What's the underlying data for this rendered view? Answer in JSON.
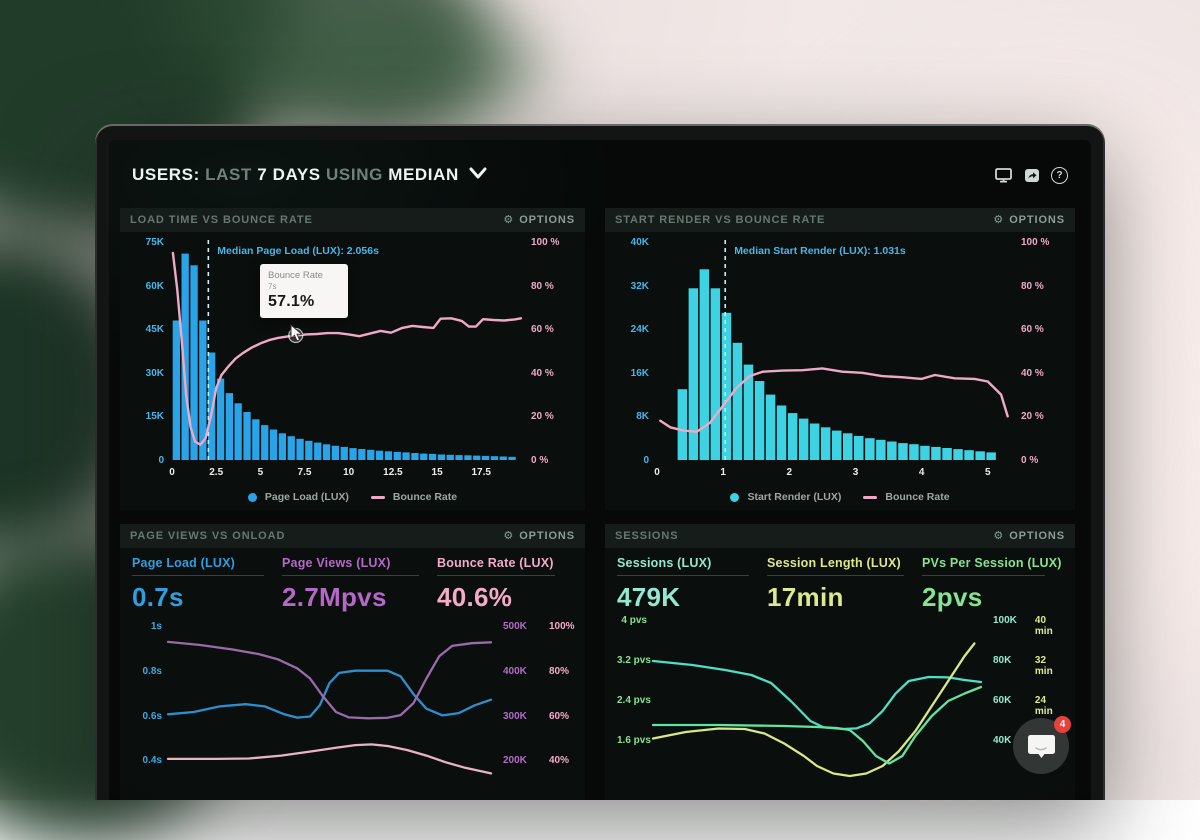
{
  "header": {
    "users": "USERS:",
    "last": " LAST ",
    "days": "7 DAYS",
    "using": " USING ",
    "metric": "MEDIAN",
    "icons": [
      "display-icon",
      "share-icon",
      "help-icon"
    ]
  },
  "glyphs": {
    "gear": "⚙",
    "help": "?"
  },
  "chat": {
    "badge": "4"
  },
  "chart_data": [
    {
      "id": "load-time-vs-bounce-rate",
      "type": "bar+line",
      "title": "LOAD TIME VS BOUNCE RATE",
      "options_label": "OPTIONS",
      "bars": {
        "name": "Page Load (LUX)",
        "color": "#2aa4e8",
        "x_start": 0,
        "bar_width": 0.5,
        "values_k": [
          48,
          71,
          67,
          48,
          37,
          28,
          23,
          19.5,
          16.5,
          14,
          12,
          10.5,
          9.2,
          8.2,
          7.3,
          6.6,
          6,
          5.4,
          4.9,
          4.5,
          4.1,
          3.8,
          3.5,
          3.2,
          3,
          2.8,
          2.6,
          2.4,
          2.2,
          2.1,
          1.9,
          1.8,
          1.7,
          1.6,
          1.5,
          1.4,
          1.3,
          1.2,
          1.1
        ]
      },
      "line": {
        "name": "Bounce Rate",
        "color": "#f0a9c5",
        "points": [
          [
            0.05,
            95
          ],
          [
            0.3,
            78
          ],
          [
            0.55,
            55
          ],
          [
            0.8,
            30
          ],
          [
            1.05,
            15
          ],
          [
            1.3,
            8.5
          ],
          [
            1.6,
            7
          ],
          [
            1.9,
            10
          ],
          [
            2.2,
            20
          ],
          [
            2.5,
            33
          ],
          [
            2.8,
            39
          ],
          [
            3.2,
            43
          ],
          [
            3.6,
            46.5
          ],
          [
            4,
            49
          ],
          [
            4.5,
            51.5
          ],
          [
            5,
            53.5
          ],
          [
            5.5,
            55
          ],
          [
            6,
            56
          ],
          [
            6.5,
            56.6
          ],
          [
            7,
            57.1
          ],
          [
            7.6,
            57.6
          ],
          [
            8.2,
            57.8
          ],
          [
            8.8,
            58.2
          ],
          [
            9.4,
            58.2
          ],
          [
            10,
            57.6
          ],
          [
            10.6,
            56.8
          ],
          [
            11.2,
            58
          ],
          [
            11.8,
            59.2
          ],
          [
            12.4,
            58.4
          ],
          [
            13,
            60.5
          ],
          [
            13.6,
            61.5
          ],
          [
            14.2,
            61
          ],
          [
            14.8,
            60.6
          ],
          [
            15.2,
            64.8
          ],
          [
            15.8,
            65
          ],
          [
            16.4,
            63.8
          ],
          [
            16.8,
            61.2
          ],
          [
            17.2,
            61.2
          ],
          [
            17.6,
            64.6
          ],
          [
            18.2,
            64.2
          ],
          [
            18.8,
            64
          ],
          [
            19.4,
            64.5
          ],
          [
            19.75,
            65
          ]
        ]
      },
      "y_left": {
        "ticks": [
          "75K",
          "60K",
          "45K",
          "30K",
          "15K",
          "0"
        ],
        "max": 75
      },
      "y_right": {
        "ticks": [
          "100 %",
          "80 %",
          "60 %",
          "40 %",
          "20 %",
          "0 %"
        ],
        "max": 100
      },
      "x": {
        "ticks": [
          "0",
          "2.5",
          "5",
          "7.5",
          "10",
          "12.5",
          "15",
          "17.5"
        ],
        "tick_values": [
          0,
          2.5,
          5,
          7.5,
          10,
          12.5,
          15,
          17.5
        ],
        "max": 19.75
      },
      "median": {
        "x": 2.056,
        "label": "Median Page Load (LUX): 2.056s"
      },
      "tooltip": {
        "title": "Bounce Rate",
        "sub": "7s",
        "value": "57.1%",
        "at_x": 7,
        "at_value": 57.1
      },
      "legend": [
        {
          "marker": "dot",
          "label": "Page Load (LUX)"
        },
        {
          "marker": "dash",
          "label": "Bounce Rate"
        }
      ]
    },
    {
      "id": "start-render-vs-bounce-rate",
      "type": "bar+line",
      "title": "START RENDER VS BOUNCE RATE",
      "options_label": "OPTIONS",
      "bars": {
        "name": "Start Render (LUX)",
        "color": "#3dd3e3",
        "x_start": 0.3,
        "bar_width": 0.1667,
        "values_k": [
          13,
          31.5,
          35,
          31.5,
          27,
          21.5,
          17.5,
          14.5,
          12,
          10,
          8.6,
          7.6,
          6.7,
          6,
          5.4,
          4.9,
          4.4,
          4,
          3.7,
          3.4,
          3.1,
          2.9,
          2.6,
          2.4,
          2.2,
          2,
          1.8,
          1.6,
          1.4
        ]
      },
      "line": {
        "name": "Bounce Rate",
        "color": "#f0a9c5",
        "points": [
          [
            0.05,
            18
          ],
          [
            0.2,
            15
          ],
          [
            0.4,
            13.5
          ],
          [
            0.6,
            13
          ],
          [
            0.8,
            17
          ],
          [
            1,
            25
          ],
          [
            1.2,
            33
          ],
          [
            1.4,
            38.5
          ],
          [
            1.6,
            40.5
          ],
          [
            1.9,
            41
          ],
          [
            2.2,
            41.2
          ],
          [
            2.5,
            42
          ],
          [
            2.8,
            40.5
          ],
          [
            3.1,
            40
          ],
          [
            3.4,
            38.5
          ],
          [
            3.7,
            38
          ],
          [
            4,
            37.2
          ],
          [
            4.2,
            39
          ],
          [
            4.5,
            37.5
          ],
          [
            4.8,
            37.2
          ],
          [
            5,
            36
          ],
          [
            5.2,
            30
          ],
          [
            5.3,
            20
          ]
        ]
      },
      "y_left": {
        "ticks": [
          "40K",
          "32K",
          "24K",
          "16K",
          "8K",
          "0"
        ],
        "max": 40
      },
      "y_right": {
        "ticks": [
          "100 %",
          "80 %",
          "60 %",
          "40 %",
          "20 %",
          "0 %"
        ],
        "max": 100
      },
      "x": {
        "ticks": [
          "0",
          "1",
          "2",
          "3",
          "4",
          "5"
        ],
        "tick_values": [
          0,
          1,
          2,
          3,
          4,
          5
        ],
        "max": 5.35
      },
      "median": {
        "x": 1.031,
        "label": "Median Start Render (LUX): 1.031s"
      },
      "legend": [
        {
          "marker": "dot",
          "label": "Start Render (LUX)"
        },
        {
          "marker": "dash",
          "label": "Bounce Rate"
        }
      ]
    },
    {
      "id": "page-views-vs-onload",
      "type": "multi-line",
      "title": "PAGE VIEWS VS ONLOAD",
      "options_label": "OPTIONS",
      "metrics": [
        {
          "label": "Page Load (LUX)",
          "value": "0.7s",
          "color": "#2f9fe0"
        },
        {
          "label": "Page Views (LUX)",
          "value": "2.7Mpvs",
          "color": "#b668c9"
        },
        {
          "label": "Bounce Rate (LUX)",
          "value": "40.6%",
          "color": "#f3abc7"
        }
      ],
      "scale": {
        "top": 1.05,
        "bottom": 0.02
      },
      "y_left": {
        "ticks": [
          "1s",
          "0.8s",
          "0.6s",
          "0.4s"
        ],
        "values": [
          1,
          0.8,
          0.6,
          0.4
        ],
        "color": "#3fa9e4"
      },
      "y_right": {
        "values": [
          1,
          0.8,
          0.6,
          0.4
        ],
        "rows": [
          [
            "500K",
            "100%"
          ],
          [
            "400K",
            "80%"
          ],
          [
            "300K",
            "60%"
          ],
          [
            "200K",
            "40%"
          ]
        ],
        "c1": "#b36cc6",
        "c2": "#f3abc7"
      },
      "series": [
        {
          "name": "Page Load",
          "unit": "s",
          "div": 1,
          "color": "#2e8fd0",
          "points": [
            [
              0,
              0.61
            ],
            [
              8,
              0.62
            ],
            [
              16,
              0.645
            ],
            [
              24,
              0.655
            ],
            [
              30,
              0.645
            ],
            [
              36,
              0.61
            ],
            [
              40,
              0.595
            ],
            [
              44,
              0.6
            ],
            [
              47,
              0.65
            ],
            [
              50,
              0.75
            ],
            [
              53,
              0.795
            ],
            [
              58,
              0.805
            ],
            [
              68,
              0.805
            ],
            [
              72,
              0.78
            ],
            [
              76,
              0.7
            ],
            [
              80,
              0.635
            ],
            [
              85,
              0.605
            ],
            [
              90,
              0.615
            ],
            [
              95,
              0.65
            ],
            [
              100,
              0.675
            ]
          ]
        },
        {
          "name": "Page Views",
          "unit": "K",
          "div": 500,
          "color": "#9b6aa8",
          "points": [
            [
              0,
              467
            ],
            [
              10,
              460
            ],
            [
              20,
              450
            ],
            [
              28,
              440
            ],
            [
              34,
              428
            ],
            [
              40,
              408
            ],
            [
              44,
              385
            ],
            [
              48,
              345
            ],
            [
              52,
              310
            ],
            [
              56,
              298
            ],
            [
              62,
              296
            ],
            [
              68,
              297
            ],
            [
              72,
              303
            ],
            [
              76,
              330
            ],
            [
              80,
              385
            ],
            [
              84,
              435
            ],
            [
              88,
              458
            ],
            [
              94,
              464
            ],
            [
              100,
              466
            ]
          ]
        },
        {
          "name": "Bounce Rate",
          "unit": "%",
          "div": 100,
          "color": "#e8b4c4",
          "points": [
            [
              0,
              41
            ],
            [
              15,
              41
            ],
            [
              25,
              41.2
            ],
            [
              35,
              42.5
            ],
            [
              45,
              44.5
            ],
            [
              52,
              46
            ],
            [
              58,
              47.2
            ],
            [
              63,
              47.5
            ],
            [
              68,
              46.8
            ],
            [
              74,
              45
            ],
            [
              80,
              42.5
            ],
            [
              86,
              39.5
            ],
            [
              92,
              37
            ],
            [
              100,
              34.5
            ]
          ]
        }
      ]
    },
    {
      "id": "sessions",
      "type": "multi-line",
      "title": "SESSIONS",
      "options_label": "OPTIONS",
      "metrics": [
        {
          "label": "Sessions (LUX)",
          "value": "479K",
          "color": "#93e8d2"
        },
        {
          "label": "Session Length (LUX)",
          "value": "17min",
          "color": "#dce98e"
        },
        {
          "label": "PVs Per Session (LUX)",
          "value": "2pvs",
          "color": "#86e490"
        }
      ],
      "scale": {
        "top": 4.1,
        "bottom": -0.5
      },
      "y_left": {
        "ticks": [
          "4 pvs",
          "3.2 pvs",
          "2.4 pvs",
          "1.6 pvs"
        ],
        "values": [
          4,
          3.2,
          2.4,
          1.6
        ],
        "color": "#86e490"
      },
      "y_right": {
        "values": [
          4,
          3.2,
          2.4,
          1.6
        ],
        "rows": [
          [
            "100K",
            "40 min"
          ],
          [
            "80K",
            "32 min"
          ],
          [
            "60K",
            "24 min"
          ],
          [
            "40K",
            ""
          ]
        ],
        "c1": "#93e8d2",
        "c2": "#dce98e"
      },
      "series": [
        {
          "name": "Sessions",
          "unit": "K",
          "div": 25,
          "color": "#4fdec6",
          "points": [
            [
              0,
              80
            ],
            [
              12,
              78
            ],
            [
              22,
              75.5
            ],
            [
              30,
              73
            ],
            [
              36,
              69
            ],
            [
              42,
              60
            ],
            [
              48,
              50
            ],
            [
              52,
              46.8
            ],
            [
              58,
              46
            ],
            [
              62,
              46.3
            ],
            [
              66,
              48.8
            ],
            [
              70,
              55
            ],
            [
              74,
              63.8
            ],
            [
              78,
              70
            ],
            [
              84,
              72
            ],
            [
              90,
              71.8
            ],
            [
              95,
              70.5
            ],
            [
              100,
              69.5
            ]
          ]
        },
        {
          "name": "Session Length",
          "unit": "min",
          "div": 10,
          "color": "#d9e882",
          "points": [
            [
              0,
              16.5
            ],
            [
              10,
              17.8
            ],
            [
              20,
              18.5
            ],
            [
              28,
              18.4
            ],
            [
              34,
              17.5
            ],
            [
              40,
              15.5
            ],
            [
              46,
              13
            ],
            [
              50,
              11
            ],
            [
              55,
              9.5
            ],
            [
              60,
              9
            ],
            [
              65,
              9.5
            ],
            [
              70,
              11
            ],
            [
              75,
              14
            ],
            [
              80,
              18
            ],
            [
              85,
              23
            ],
            [
              90,
              28
            ],
            [
              95,
              33
            ],
            [
              98,
              35.5
            ]
          ]
        },
        {
          "name": "PVs Per Session",
          "unit": "pvs",
          "div": 1,
          "color": "#63e3a1",
          "points": [
            [
              0,
              1.92
            ],
            [
              20,
              1.92
            ],
            [
              40,
              1.9
            ],
            [
              50,
              1.88
            ],
            [
              56,
              1.86
            ],
            [
              60,
              1.82
            ],
            [
              64,
              1.6
            ],
            [
              68,
              1.3
            ],
            [
              72,
              1.15
            ],
            [
              76,
              1.3
            ],
            [
              80,
              1.7
            ],
            [
              85,
              2.1
            ],
            [
              90,
              2.4
            ],
            [
              95,
              2.55
            ],
            [
              100,
              2.68
            ]
          ]
        }
      ]
    }
  ]
}
